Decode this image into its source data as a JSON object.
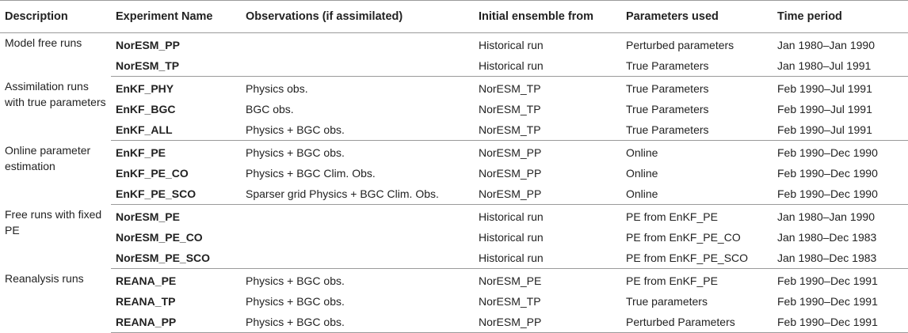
{
  "table": {
    "headers": [
      "Description",
      "Experiment Name",
      "Observations (if assimilated)",
      "Initial ensemble from",
      "Parameters used",
      "Time period"
    ],
    "groups": [
      {
        "description": "Model free runs",
        "rows": [
          {
            "name": "NorESM_PP",
            "observations": "",
            "initial": "Historical run",
            "parameters": "Perturbed parameters",
            "period": "Jan 1980–Jan 1990"
          },
          {
            "name": "NorESM_TP",
            "observations": "",
            "initial": "Historical run",
            "parameters": "True Parameters",
            "period": "Jan 1980–Jul 1991"
          }
        ]
      },
      {
        "description": "Assimilation runs with true parameters",
        "rows": [
          {
            "name": "EnKF_PHY",
            "observations": "Physics obs.",
            "initial": "NorESM_TP",
            "parameters": "True Parameters",
            "period": "Feb 1990–Jul 1991"
          },
          {
            "name": "EnKF_BGC",
            "observations": "BGC obs.",
            "initial": "NorESM_TP",
            "parameters": "True Parameters",
            "period": "Feb 1990–Jul 1991"
          },
          {
            "name": "EnKF_ALL",
            "observations": "Physics + BGC obs.",
            "initial": "NorESM_TP",
            "parameters": "True Parameters",
            "period": "Feb 1990–Jul 1991"
          }
        ]
      },
      {
        "description": "Online parameter estimation",
        "rows": [
          {
            "name": "EnKF_PE",
            "observations": "Physics + BGC obs.",
            "initial": "NorESM_PP",
            "parameters": "Online",
            "period": "Feb 1990–Dec 1990"
          },
          {
            "name": "EnKF_PE_CO",
            "observations": "Physics + BGC Clim. Obs.",
            "initial": "NorESM_PP",
            "parameters": "Online",
            "period": "Feb 1990–Dec 1990"
          },
          {
            "name": "EnKF_PE_SCO",
            "observations": "Sparser grid Physics + BGC Clim. Obs.",
            "initial": "NorESM_PP",
            "parameters": "Online",
            "period": "Feb 1990–Dec 1990"
          }
        ]
      },
      {
        "description": "Free runs with fixed PE",
        "rows": [
          {
            "name": "NorESM_PE",
            "observations": "",
            "initial": "Historical run",
            "parameters": "PE from EnKF_PE",
            "period": "Jan 1980–Jan 1990"
          },
          {
            "name": "NorESM_PE_CO",
            "observations": "",
            "initial": "Historical run",
            "parameters": "PE from EnKF_PE_CO",
            "period": "Jan 1980–Dec 1983"
          },
          {
            "name": "NorESM_PE_SCO",
            "observations": "",
            "initial": "Historical run",
            "parameters": "PE from EnKF_PE_SCO",
            "period": "Jan 1980–Dec 1983"
          }
        ]
      },
      {
        "description": "Reanalysis runs",
        "rows": [
          {
            "name": "REANA_PE",
            "observations": "Physics + BGC obs.",
            "initial": "NorESM_PE",
            "parameters": "PE from EnKF_PE",
            "period": "Feb 1990–Dec 1991"
          },
          {
            "name": "REANA_TP",
            "observations": "Physics + BGC obs.",
            "initial": "NorESM_TP",
            "parameters": "True parameters",
            "period": "Feb 1990–Dec 1991"
          },
          {
            "name": "REANA_PP",
            "observations": "Physics + BGC obs.",
            "initial": "NorESM_PP",
            "parameters": "Perturbed Parameters",
            "period": "Feb 1990–Dec 1991"
          }
        ]
      }
    ]
  }
}
